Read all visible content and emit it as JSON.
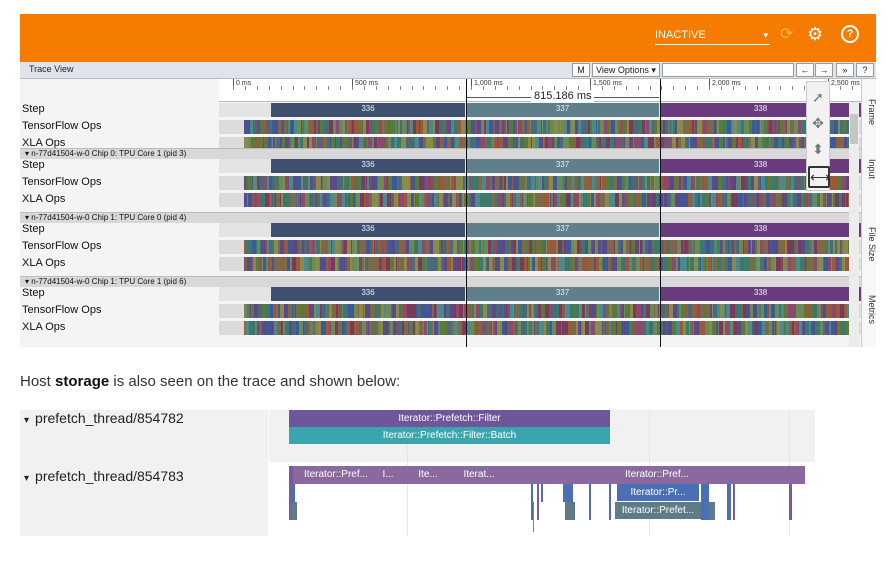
{
  "topbar": {
    "status_value": "INACTIVE",
    "status_arrow": "▾",
    "icons": [
      "refresh-icon",
      "gear-icon",
      "help-icon"
    ],
    "refresh_glyph": "⟳",
    "gear_glyph": "⚙",
    "help_glyph": "?",
    "color": "#f57c00"
  },
  "trace_view": {
    "title": "Trace View",
    "m_button": "M",
    "view_options": "View Options ▾",
    "nav_left": "←",
    "nav_right": "→",
    "expand": "»",
    "help": "?",
    "ruler_ticks": [
      "0 ms",
      "500 ms",
      "1,000 ms",
      "1,500 ms",
      "2,000 ms",
      "2,500 ms"
    ],
    "measure": "815.186 ms",
    "groups": [
      {
        "header": "",
        "rows": [
          "Step",
          "TensorFlow Ops",
          "XLA Ops"
        ],
        "steps": [
          "336",
          "337",
          "338"
        ]
      },
      {
        "header": "▾ n-77d41504-w-0 Chip 0: TPU Core 1 (pid 3)",
        "rows": [
          "Step",
          "TensorFlow Ops",
          "XLA Ops"
        ],
        "steps": [
          "336",
          "337",
          "338"
        ]
      },
      {
        "header": "▾ n-77d41504-w-0 Chip 1: TPU Core 0 (pid 4)",
        "rows": [
          "Step",
          "TensorFlow Ops",
          "XLA Ops"
        ],
        "steps": [
          "336",
          "337",
          "338"
        ]
      },
      {
        "header": "▾ n-77d41504-w-0 Chip 1: TPU Core 1 (pid 6)",
        "rows": [
          "Step",
          "TensorFlow Ops",
          "XLA Ops"
        ],
        "steps": [
          "336",
          "337",
          "338"
        ]
      }
    ],
    "step_colors": [
      "#3f5070",
      "#5f7f8a",
      "#6a3c7e"
    ],
    "tools": {
      "select": "➚",
      "pan": "✥",
      "zoom_vertical": "⬍",
      "zoom_horizontal": "⟷"
    },
    "side_tabs": [
      "Frame",
      "Input",
      "File Size",
      "Metrics"
    ]
  },
  "caption": {
    "before": "Host ",
    "bold": "storage",
    "after": " is also seen on the trace and shown below:"
  },
  "host": {
    "threads": [
      {
        "triangle": "▾",
        "name": "prefetch_thread/854782"
      },
      {
        "triangle": "▾",
        "name": "prefetch_thread/854783"
      }
    ],
    "t1_bars": [
      "Iterator::Prefetch::Filter",
      "Iterator::Prefetch::Filter::Batch"
    ],
    "t2_top_bars": [
      "Iterator::Pref...",
      "I...",
      "Ite...",
      "Iterat...",
      "Iterator::Pref..."
    ],
    "t2_bar2": "Iterator::Pr...",
    "t2_bar3": "Iterator::Prefet...",
    "colors": {
      "purple": "#7b5a9e",
      "teal": "#3aa5ad",
      "blue": "#4a6fb5",
      "slate": "#5e7c86"
    }
  }
}
